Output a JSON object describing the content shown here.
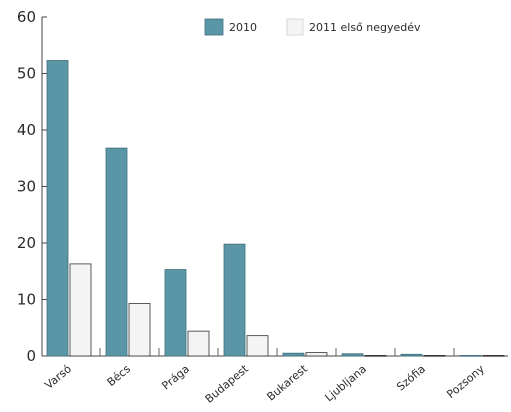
{
  "chart_data": {
    "type": "bar",
    "categories": [
      "Varsó",
      "Bécs",
      "Prága",
      "Budapest",
      "Bukarest",
      "Ljubljana",
      "Szófia",
      "Pozsony"
    ],
    "series": [
      {
        "name": "2010",
        "values": [
          52.3,
          36.8,
          15.3,
          19.8,
          0.5,
          0.4,
          0.3,
          0.1
        ],
        "color": "#5b96a6"
      },
      {
        "name": "2011 első negyedév",
        "values": [
          16.3,
          9.3,
          4.4,
          3.6,
          0.6,
          0.1,
          0.1,
          0.1
        ],
        "color": "#f4f4f4"
      }
    ],
    "yticks": [
      0,
      10,
      20,
      30,
      40,
      50,
      60
    ],
    "ylim": [
      0,
      60
    ],
    "grid": false,
    "legend_position": "top-right"
  }
}
